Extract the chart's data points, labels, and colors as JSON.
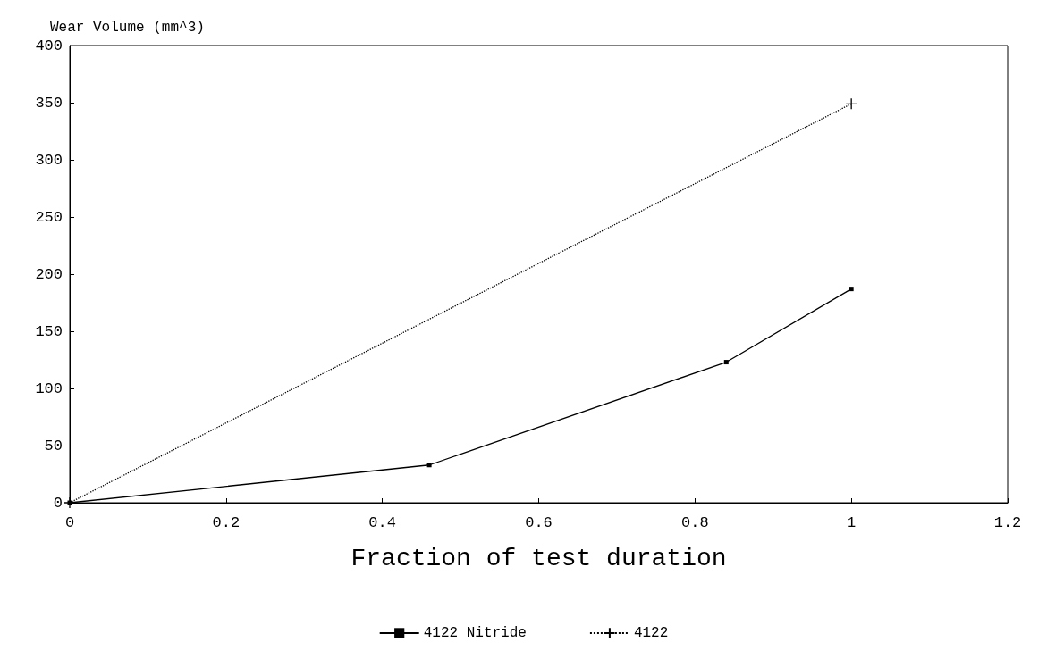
{
  "chart_data": {
    "type": "line",
    "ylabel": "Wear Volume (mm^3)",
    "xlabel": "Fraction of test duration",
    "xlim": [
      0,
      1.2
    ],
    "xticks": [
      0,
      0.2,
      0.4,
      0.6,
      0.8,
      1,
      1.2
    ],
    "ylim": [
      0,
      400
    ],
    "yticks": [
      0,
      50,
      100,
      150,
      200,
      250,
      300,
      350,
      400
    ],
    "grid": false,
    "legend": "bottom",
    "series": [
      {
        "name": "4122 Nitride",
        "color": "#000000",
        "x": [
          0,
          0.46,
          0.84,
          1
        ],
        "values": [
          0,
          33,
          123,
          187
        ],
        "marker": "square",
        "line_style": "solid"
      },
      {
        "name": "4122",
        "color": "#000000",
        "x": [
          0,
          1
        ],
        "values": [
          0,
          349
        ],
        "marker": "cross",
        "line_style": "dotted"
      }
    ]
  }
}
